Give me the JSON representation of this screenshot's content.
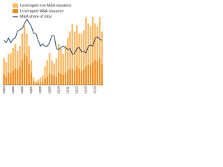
{
  "chart_data": {
    "type": "bar",
    "categories": [
      "1Q04",
      null,
      null,
      null,
      "1Q05",
      null,
      null,
      null,
      "1Q06",
      null,
      null,
      null,
      "1Q07",
      null,
      null,
      null,
      "1Q08",
      null,
      null,
      null,
      "1Q09",
      null,
      null,
      null,
      "1Q10",
      null,
      null,
      null,
      "1Q11",
      null,
      null,
      null,
      "1Q12",
      null,
      null,
      null,
      "1Q13",
      null,
      null,
      null,
      "1Q14",
      null,
      null,
      null
    ],
    "series": [
      {
        "name": "Leveraged non-M&A issuance",
        "color": "#fbb865",
        "values": [
          40,
          35,
          45,
          50,
          55,
          60,
          45,
          50,
          65,
          70,
          55,
          45,
          30,
          10,
          5,
          8,
          12,
          15,
          30,
          40,
          50,
          35,
          30,
          45,
          70,
          60,
          50,
          65,
          80,
          90,
          110,
          95,
          100,
          85,
          90,
          95,
          120,
          100,
          95,
          110,
          90,
          85,
          100,
          80
        ]
      },
      {
        "name": "Leveraged M&A issuance",
        "color": "#f08c1a",
        "values": [
          25,
          20,
          30,
          28,
          35,
          40,
          38,
          45,
          60,
          75,
          70,
          50,
          30,
          8,
          4,
          5,
          6,
          8,
          15,
          20,
          28,
          25,
          22,
          20,
          30,
          28,
          25,
          30,
          35,
          40,
          38,
          35,
          45,
          40,
          35,
          38,
          45,
          50,
          48,
          55,
          60,
          58,
          65,
          50
        ]
      },
      {
        "name": "M&A share of total",
        "color": "#1b3d5e",
        "type": "line",
        "axis": "y2",
        "values": [
          38,
          36,
          40,
          36,
          39,
          40,
          46,
          47,
          48,
          52,
          56,
          53,
          50,
          44,
          44,
          38,
          33,
          35,
          33,
          33,
          36,
          42,
          42,
          31,
          30,
          32,
          33,
          32,
          30,
          31,
          26,
          27,
          31,
          32,
          28,
          29,
          27,
          33,
          34,
          33,
          40,
          41,
          39,
          38
        ]
      }
    ],
    "ylim": [
      0,
      200
    ],
    "y2lim": [
      0,
      70
    ]
  }
}
